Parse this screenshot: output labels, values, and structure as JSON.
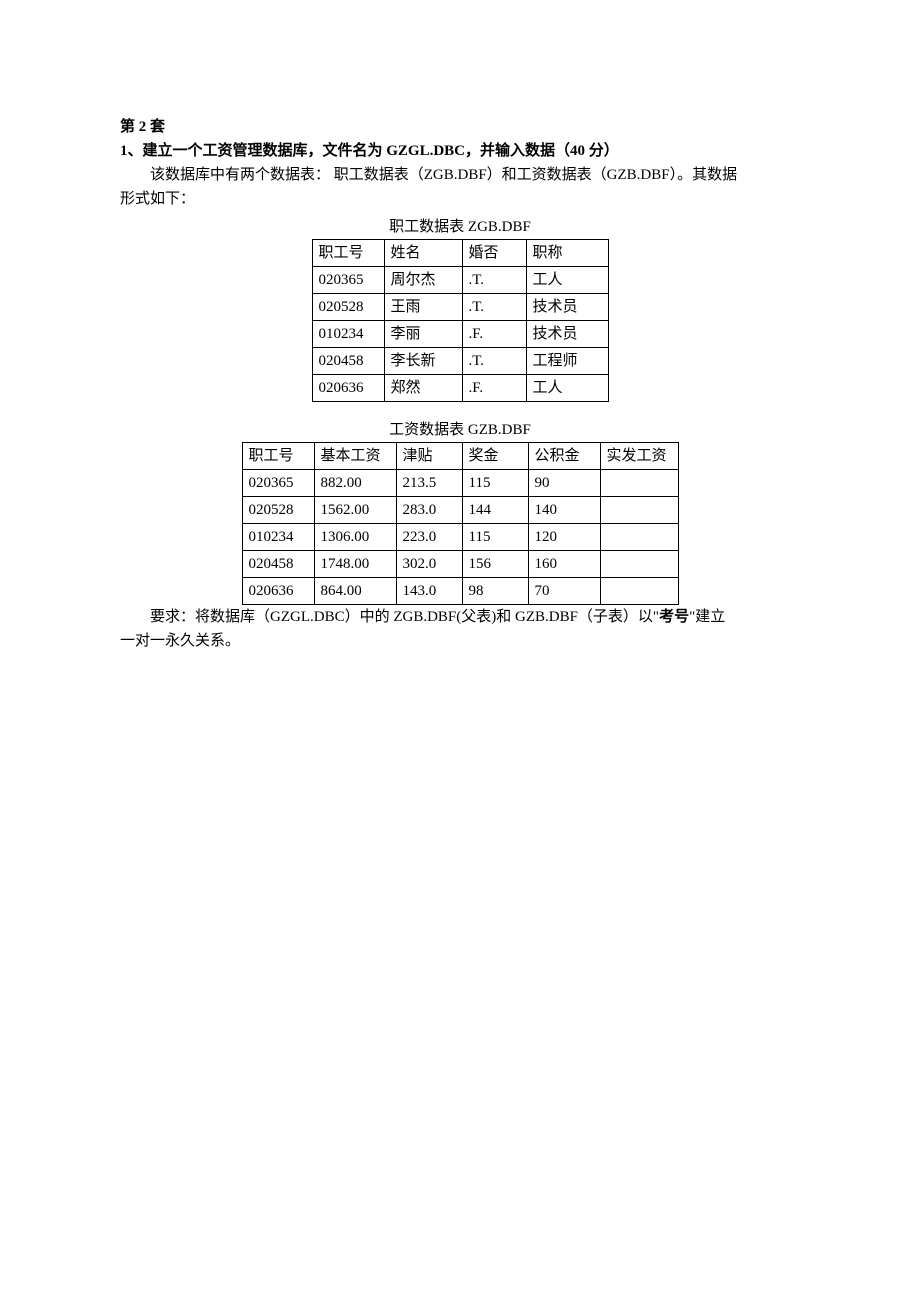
{
  "heading1": "第 2 套",
  "heading2": "1、建立一个工资管理数据库，文件名为 GZGL.DBC，并输入数据（40 分）",
  "paragraph1": "该数据库中有两个数据表：  职工数据表（ZGB.DBF）和工资数据表（GZB.DBF）。其数据",
  "paragraph1_cont": "形式如下：",
  "table1": {
    "title": "职工数据表 ZGB.DBF",
    "columns": [
      "职工号",
      "姓名",
      "婚否",
      "职称"
    ],
    "rows": [
      [
        "020365",
        "周尔杰",
        ".T.",
        "工人"
      ],
      [
        "020528",
        "王雨",
        ".T.",
        "技术员"
      ],
      [
        "010234",
        "李丽",
        ".F.",
        "技术员"
      ],
      [
        "020458",
        "李长新",
        ".T.",
        "工程师"
      ],
      [
        "020636",
        "郑然",
        ".F.",
        "工人"
      ]
    ]
  },
  "table2": {
    "title": "工资数据表 GZB.DBF",
    "columns": [
      "职工号",
      "基本工资",
      "津贴",
      "奖金",
      "公积金",
      "实发工资"
    ],
    "rows": [
      [
        "020365",
        "882.00",
        "213.5",
        "115",
        "90",
        ""
      ],
      [
        "020528",
        "1562.00",
        "283.0",
        "144",
        "140",
        ""
      ],
      [
        "010234",
        "1306.00",
        "223.0",
        "115",
        "120",
        ""
      ],
      [
        "020458",
        "1748.00",
        "302.0",
        "156",
        "160",
        ""
      ],
      [
        "020636",
        "864.00",
        "143.0",
        "98",
        "70",
        ""
      ]
    ]
  },
  "footer_pre": "要求：将数据库（GZGL.DBC）中的 ZGB.DBF(父表)和 GZB.DBF（子表）以\"",
  "footer_bold": "考号",
  "footer_post": "\"建立",
  "footer_line2": "一对一永久关系。"
}
